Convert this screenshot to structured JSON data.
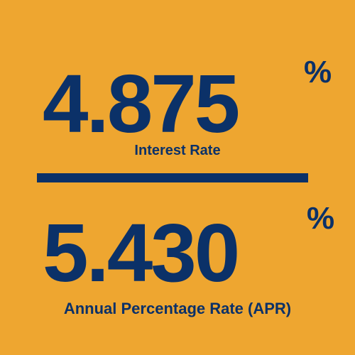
{
  "theme": {
    "background": "#EEA630",
    "text_color": "#0B3168"
  },
  "interest": {
    "value": "4.875",
    "unit": "%",
    "label": "Interest Rate"
  },
  "apr": {
    "value": "5.430",
    "unit": "%",
    "label": "Annual Percentage Rate (APR)"
  }
}
